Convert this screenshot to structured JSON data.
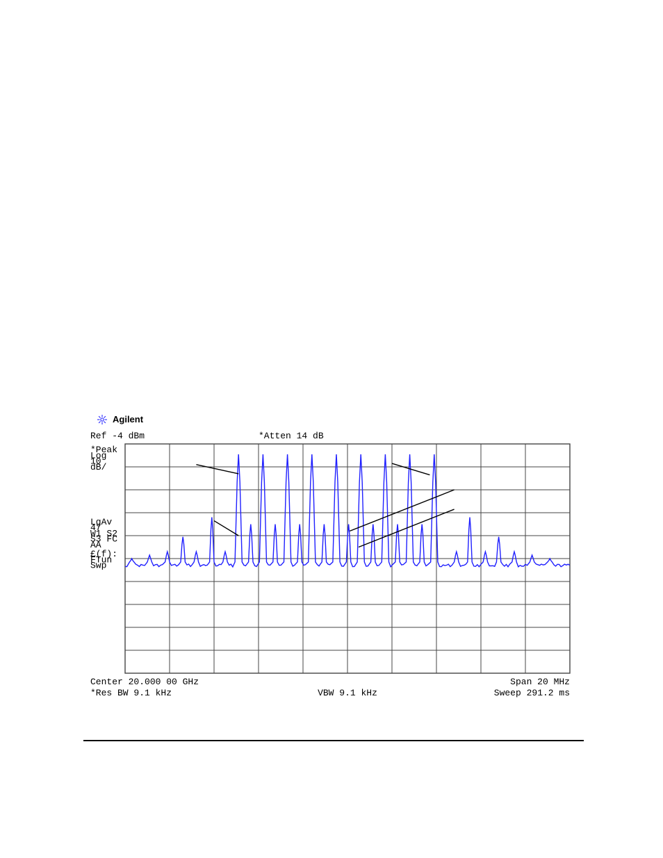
{
  "brand": {
    "name": "Agilent",
    "icon_color": "#2020ff"
  },
  "analyzer": {
    "ref_label": "Ref -4 dBm",
    "atten_label": "*Atten 14 dB",
    "center_label": "Center 20.000 00 GHz",
    "span_label": "Span 20 MHz",
    "resbw_label": "*Res BW 9.1 kHz",
    "vbw_label": "VBW 9.1 kHz",
    "sweep_label": "Sweep 291.2 ms",
    "left_labels": [
      "*Peak",
      "Log",
      "10",
      "dB/",
      "",
      "LgAv",
      "47",
      "W1 S2",
      "S3 FC",
      "   AA",
      "£(f):",
      "FTun",
      "Swp"
    ],
    "left_label_rows": [
      0,
      0.25,
      0.5,
      0.75,
      0,
      3.15,
      3.4,
      3.65,
      3.9,
      4.15,
      4.55,
      4.8,
      5.05
    ],
    "plot": {
      "bg": "#ffffff",
      "grid_color": "#444444",
      "trace_color": "#2020ff",
      "cols": 10,
      "rows": 10,
      "noise_floor_row": 5.3,
      "noise_jitter": 0.12,
      "main_peaks": {
        "start_col": 2.55,
        "count": 9,
        "step": 0.55,
        "top_row": 0.45,
        "width": 0.16
      },
      "side_peak_offset": 0.275,
      "side_peak_top_row": 3.5,
      "minor_peaks_left": [
        {
          "c": 0.15,
          "r": 5.0
        },
        {
          "c": 0.55,
          "r": 4.85
        },
        {
          "c": 0.95,
          "r": 4.7
        },
        {
          "c": 1.3,
          "r": 4.05
        },
        {
          "c": 1.6,
          "r": 4.7
        },
        {
          "c": 1.95,
          "r": 3.2
        },
        {
          "c": 2.25,
          "r": 4.7
        }
      ],
      "minor_peaks_right": [
        {
          "c": 7.45,
          "r": 4.7
        },
        {
          "c": 7.75,
          "r": 3.2
        },
        {
          "c": 8.1,
          "r": 4.7
        },
        {
          "c": 8.4,
          "r": 4.05
        },
        {
          "c": 8.75,
          "r": 4.7
        },
        {
          "c": 9.15,
          "r": 4.85
        },
        {
          "c": 9.55,
          "r": 5.0
        }
      ],
      "annotations": [
        {
          "x1_col": 1.6,
          "y1_row": 0.9,
          "x2_col": 2.55,
          "y2_row": 1.3
        },
        {
          "x1_col": 2.0,
          "y1_row": 3.35,
          "x2_col": 2.55,
          "y2_row": 4.0
        },
        {
          "x1_col": 6.85,
          "y1_row": 1.35,
          "x2_col": 6.0,
          "y2_row": 0.85
        },
        {
          "x1_col": 7.4,
          "y1_row": 2.0,
          "x2_col": 5.05,
          "y2_row": 3.8
        },
        {
          "x1_col": 7.4,
          "y1_row": 2.85,
          "x2_col": 5.25,
          "y2_row": 4.5
        }
      ]
    }
  }
}
